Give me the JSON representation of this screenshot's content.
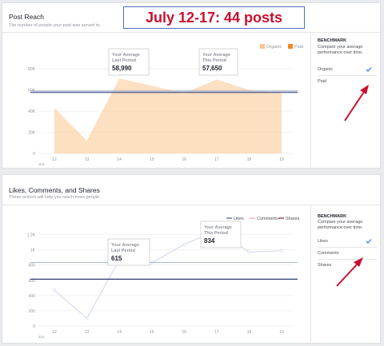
{
  "banner": {
    "text": "July 12-17: 44 posts"
  },
  "post_reach": {
    "title": "Post Reach",
    "subtitle": "The number of people your post was served to.",
    "legend": {
      "organic": "Organic",
      "paid": "Paid"
    },
    "benchmark": {
      "title": "BENCHMARK",
      "description": "Compare your average performance over time.",
      "options": [
        {
          "label": "Organic",
          "checked": true
        },
        {
          "label": "Paid",
          "checked": false
        }
      ]
    },
    "tooltip_last": {
      "label1": "Your Average",
      "label2": "Last Period",
      "value": "58,990"
    },
    "tooltip_this": {
      "label1": "Your Average",
      "label2": "This Period",
      "value": "57,650"
    }
  },
  "engagement": {
    "title": "Likes, Comments, and Shares",
    "subtitle": "These actions will help you reach more people.",
    "legend": {
      "likes": "Likes",
      "comments": "Comments",
      "shares": "Shares"
    },
    "benchmark": {
      "title": "BENCHMARK",
      "description": "Compare your average performance over time.",
      "options": [
        {
          "label": "Likes",
          "checked": true
        },
        {
          "label": "Comments",
          "checked": false
        },
        {
          "label": "Shares",
          "checked": false
        }
      ]
    },
    "tooltip_last": {
      "label1": "Your Average",
      "label2": "Last Period",
      "value": "615"
    },
    "tooltip_this": {
      "label1": "Your Average",
      "label2": "This Period",
      "value": "834"
    }
  },
  "colors": {
    "organic": "#fcc58f",
    "paid": "#f48a1f",
    "likes": "#4a5a94",
    "comments": "#e8a3a8",
    "shares": "#8b1a2b",
    "arrow": "#c8102e"
  },
  "chart_data": [
    {
      "type": "area",
      "x": [
        "12",
        "13",
        "14",
        "15",
        "16",
        "17",
        "18",
        "19"
      ],
      "x_sublabel": "JUL",
      "series": [
        {
          "name": "Organic",
          "values": [
            43000,
            12000,
            71000,
            64000,
            57000,
            70000,
            60000,
            57000
          ]
        }
      ],
      "y_ticks": [
        "0",
        "20K",
        "40K",
        "60K",
        "80K"
      ],
      "ylim": [
        0,
        90000
      ],
      "benchmark_last_period": 58990,
      "benchmark_this_period": 57650
    },
    {
      "type": "line",
      "x": [
        "12",
        "13",
        "14",
        "15",
        "16",
        "17",
        "18",
        "19"
      ],
      "x_sublabel": "JUL",
      "series": [
        {
          "name": "Likes",
          "values": [
            470,
            100,
            870,
            830,
            1070,
            1250,
            970,
            990
          ]
        }
      ],
      "y_ticks": [
        "0",
        "200",
        "400",
        "600",
        "800",
        "1K",
        "1.2K"
      ],
      "ylim": [
        0,
        1300
      ],
      "benchmark_last_period": 615,
      "benchmark_this_period": 834
    }
  ]
}
